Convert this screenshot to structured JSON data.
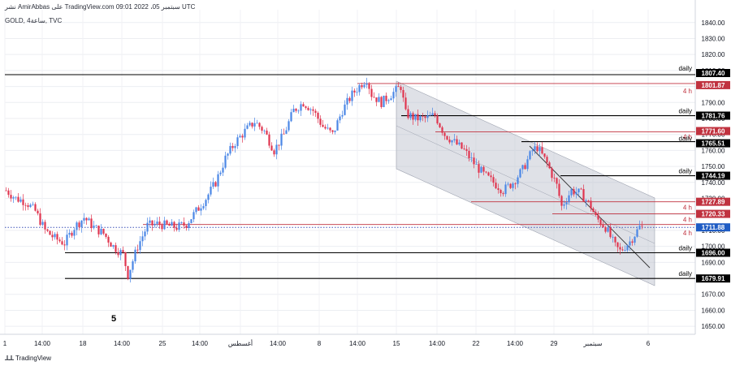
{
  "header": {
    "top_line": "نشر AmirAbbas على TradingView.com 09:01 2022 ،05 سبتمبر UTC",
    "symbol_line": "GOLD, 4ساعة, TVC"
  },
  "brand": {
    "icon": "tradingview-logo-icon",
    "label": "TradingView"
  },
  "colors": {
    "bull": "#4b87e6",
    "bear": "#e0354f",
    "black_line": "#000000",
    "red_line": "#c0323f",
    "channel_fill": "#b9bdc9",
    "dotted": "#3d52b8",
    "price_badge": "#1f5cc4"
  },
  "chart_data": {
    "type": "candlestick",
    "symbol": "GOLD",
    "timeframe": "4ساعة",
    "source": "TVC",
    "ylim": [
      1645,
      1848
    ],
    "y_ticks": [
      1650,
      1660,
      1670,
      1680,
      1690,
      1700,
      1710,
      1720,
      1730,
      1740,
      1750,
      1760,
      1770,
      1780,
      1790,
      1800,
      1810,
      1820,
      1830,
      1840
    ],
    "x_ticks": [
      "1",
      "14:00",
      "18",
      "14:00",
      "25",
      "14:00",
      "أغسطس",
      "14:00",
      "8",
      "14:00",
      "15",
      "14:00",
      "22",
      "14:00",
      "29",
      "سبتمبر",
      "6"
    ],
    "price_labels": [
      {
        "value": 1807.4,
        "text": "1807.40",
        "style": "black",
        "tag": "daily"
      },
      {
        "value": 1801.87,
        "text": "1801.87",
        "style": "red",
        "tag": "4 h"
      },
      {
        "value": 1781.76,
        "text": "1781.76",
        "style": "black",
        "tag": "daily"
      },
      {
        "value": 1771.6,
        "text": "1771.60",
        "style": "red",
        "tag": "4 h"
      },
      {
        "value": 1765.51,
        "text": "1765.51",
        "style": "black",
        "tag": "daily"
      },
      {
        "value": 1744.19,
        "text": "1744.19",
        "style": "black",
        "tag": "daily"
      },
      {
        "value": 1727.89,
        "text": "1727.89",
        "style": "red",
        "tag": "4 h"
      },
      {
        "value": 1720.33,
        "text": "1720.33",
        "style": "red",
        "tag": "4 h"
      },
      {
        "value": 1711.88,
        "text": "1711.88",
        "style": "current",
        "tag": "4 h"
      },
      {
        "value": 1696.0,
        "text": "1696.00",
        "style": "black",
        "tag": "daily"
      },
      {
        "value": 1679.91,
        "text": "1679.91",
        "style": "black",
        "tag": "daily"
      }
    ],
    "annotations": [
      "5"
    ],
    "close_path": [
      [
        0,
        1735
      ],
      [
        4,
        1730
      ],
      [
        8,
        1728
      ],
      [
        12,
        1722
      ],
      [
        16,
        1710
      ],
      [
        20,
        1705
      ],
      [
        24,
        1702
      ],
      [
        28,
        1712
      ],
      [
        32,
        1718
      ],
      [
        36,
        1712
      ],
      [
        40,
        1708
      ],
      [
        44,
        1700
      ],
      [
        48,
        1695
      ],
      [
        50,
        1682
      ],
      [
        54,
        1700
      ],
      [
        58,
        1713
      ],
      [
        62,
        1714
      ],
      [
        66,
        1713
      ],
      [
        70,
        1712
      ],
      [
        74,
        1714
      ],
      [
        78,
        1722
      ],
      [
        82,
        1730
      ],
      [
        86,
        1740
      ],
      [
        90,
        1755
      ],
      [
        94,
        1765
      ],
      [
        98,
        1772
      ],
      [
        102,
        1778
      ],
      [
        106,
        1772
      ],
      [
        110,
        1760
      ],
      [
        114,
        1770
      ],
      [
        118,
        1785
      ],
      [
        122,
        1790
      ],
      [
        126,
        1785
      ],
      [
        130,
        1775
      ],
      [
        134,
        1770
      ],
      [
        138,
        1785
      ],
      [
        142,
        1795
      ],
      [
        146,
        1802
      ],
      [
        148,
        1805
      ],
      [
        150,
        1795
      ],
      [
        154,
        1790
      ],
      [
        158,
        1795
      ],
      [
        162,
        1800
      ],
      [
        164,
        1783
      ],
      [
        168,
        1780
      ],
      [
        172,
        1780
      ],
      [
        176,
        1782
      ],
      [
        180,
        1770
      ],
      [
        184,
        1765
      ],
      [
        188,
        1760
      ],
      [
        192,
        1752
      ],
      [
        196,
        1745
      ],
      [
        200,
        1740
      ],
      [
        204,
        1735
      ],
      [
        208,
        1740
      ],
      [
        212,
        1748
      ],
      [
        216,
        1760
      ],
      [
        218,
        1762
      ],
      [
        222,
        1752
      ],
      [
        226,
        1738
      ],
      [
        228,
        1725
      ],
      [
        232,
        1735
      ],
      [
        236,
        1733
      ],
      [
        240,
        1725
      ],
      [
        242,
        1718
      ],
      [
        246,
        1712
      ],
      [
        250,
        1700
      ],
      [
        252,
        1697
      ],
      [
        256,
        1703
      ],
      [
        260,
        1712
      ],
      [
        262,
        1712
      ]
    ],
    "candles_per_column": 3.3
  }
}
